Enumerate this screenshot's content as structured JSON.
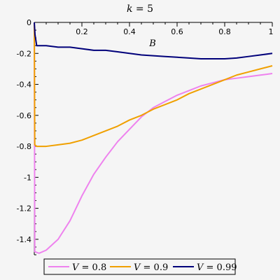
{
  "chart_data": {
    "type": "line",
    "title_var": "k",
    "title_value": "5",
    "xlabel": "B",
    "ylabel": "",
    "xlim": [
      0,
      1
    ],
    "ylim": [
      -1.5,
      0
    ],
    "x_ticks": [
      0.2,
      0.4,
      0.6,
      0.8,
      1
    ],
    "x_tick_labels": [
      "0.2",
      "0.4",
      "0.6",
      "0.8",
      "1"
    ],
    "y_ticks": [
      0,
      -0.2,
      -0.4,
      -0.6,
      -0.8,
      -1,
      -1.2,
      -1.4
    ],
    "y_tick_labels": [
      "0",
      "-0.2",
      "-0.4",
      "-0.6",
      "-0.8",
      "-1",
      "-1.2",
      "-1.4"
    ],
    "grid": false,
    "legend_position": "bottom",
    "series": [
      {
        "name": "V = 0.8",
        "legend_var": "V",
        "legend_value": "0.8",
        "color": "#ee82ee",
        "points": [
          [
            0,
            0
          ],
          [
            0.002,
            -1.48
          ],
          [
            0.02,
            -1.49
          ],
          [
            0.05,
            -1.47
          ],
          [
            0.1,
            -1.4
          ],
          [
            0.15,
            -1.28
          ],
          [
            0.2,
            -1.12
          ],
          [
            0.25,
            -0.98
          ],
          [
            0.3,
            -0.87
          ],
          [
            0.35,
            -0.77
          ],
          [
            0.4,
            -0.69
          ],
          [
            0.45,
            -0.61
          ],
          [
            0.5,
            -0.55
          ],
          [
            0.55,
            -0.51
          ],
          [
            0.6,
            -0.47
          ],
          [
            0.65,
            -0.44
          ],
          [
            0.7,
            -0.41
          ],
          [
            0.75,
            -0.39
          ],
          [
            0.8,
            -0.37
          ],
          [
            0.85,
            -0.36
          ],
          [
            0.9,
            -0.35
          ],
          [
            0.95,
            -0.34
          ],
          [
            1.0,
            -0.33
          ]
        ]
      },
      {
        "name": "V = 0.9",
        "legend_var": "V",
        "legend_value": "0.9",
        "color": "#f0a000",
        "points": [
          [
            0,
            0
          ],
          [
            0.002,
            -0.79
          ],
          [
            0.01,
            -0.8
          ],
          [
            0.05,
            -0.8
          ],
          [
            0.1,
            -0.79
          ],
          [
            0.15,
            -0.78
          ],
          [
            0.2,
            -0.76
          ],
          [
            0.25,
            -0.73
          ],
          [
            0.3,
            -0.7
          ],
          [
            0.35,
            -0.67
          ],
          [
            0.4,
            -0.63
          ],
          [
            0.45,
            -0.6
          ],
          [
            0.5,
            -0.56
          ],
          [
            0.55,
            -0.53
          ],
          [
            0.6,
            -0.5
          ],
          [
            0.65,
            -0.46
          ],
          [
            0.7,
            -0.43
          ],
          [
            0.75,
            -0.4
          ],
          [
            0.8,
            -0.37
          ],
          [
            0.85,
            -0.34
          ],
          [
            0.9,
            -0.32
          ],
          [
            0.95,
            -0.3
          ],
          [
            1.0,
            -0.28
          ]
        ]
      },
      {
        "name": "V = 0.99",
        "legend_var": "V",
        "legend_value": "0.99",
        "color": "#00007a",
        "points": [
          [
            0,
            0
          ],
          [
            0.003,
            -0.08
          ],
          [
            0.01,
            -0.15
          ],
          [
            0.05,
            -0.15
          ],
          [
            0.1,
            -0.16
          ],
          [
            0.15,
            -0.16
          ],
          [
            0.2,
            -0.17
          ],
          [
            0.25,
            -0.18
          ],
          [
            0.3,
            -0.18
          ],
          [
            0.35,
            -0.19
          ],
          [
            0.4,
            -0.2
          ],
          [
            0.45,
            -0.21
          ],
          [
            0.5,
            -0.215
          ],
          [
            0.55,
            -0.22
          ],
          [
            0.6,
            -0.225
          ],
          [
            0.65,
            -0.23
          ],
          [
            0.7,
            -0.235
          ],
          [
            0.75,
            -0.235
          ],
          [
            0.8,
            -0.235
          ],
          [
            0.85,
            -0.23
          ],
          [
            0.9,
            -0.22
          ],
          [
            0.95,
            -0.21
          ],
          [
            1.0,
            -0.2
          ]
        ]
      }
    ]
  }
}
